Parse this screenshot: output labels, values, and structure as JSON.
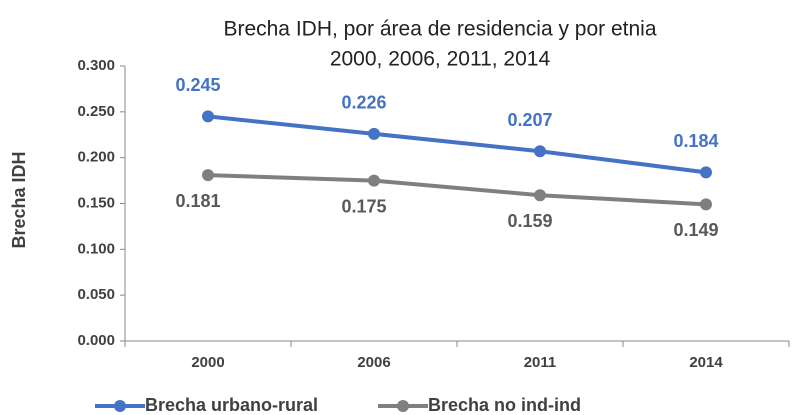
{
  "chart_data": {
    "type": "line",
    "title": [
      "Brecha IDH, por área de residencia y por etnia",
      "2000, 2006, 2011, 2014"
    ],
    "y_label": "Brecha IDH",
    "categories": [
      "2000",
      "2006",
      "2011",
      "2014"
    ],
    "series": [
      {
        "name": "Brecha urbano-rural",
        "color": "#4472c4",
        "values": [
          0.245,
          0.226,
          0.207,
          0.184
        ]
      },
      {
        "name": "Brecha no ind-ind",
        "color": "#7f7f7f",
        "values": [
          0.181,
          0.175,
          0.159,
          0.149
        ]
      }
    ],
    "ylim": [
      0,
      0.3
    ],
    "yticks": [
      {
        "value": 0,
        "label": "0.000"
      },
      {
        "value": 0.05,
        "label": "0.050"
      },
      {
        "value": 0.1,
        "label": "0.100"
      },
      {
        "value": 0.15,
        "label": "0.150"
      },
      {
        "value": 0.2,
        "label": "0.200"
      },
      {
        "value": 0.25,
        "label": "0.250"
      },
      {
        "value": 0.3,
        "label": "0.300"
      }
    ],
    "grid": false,
    "legend": "bottom"
  }
}
